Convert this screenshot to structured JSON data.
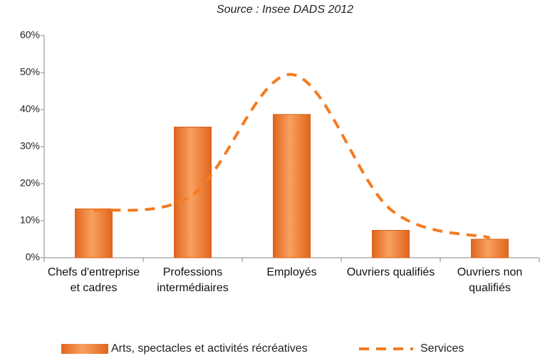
{
  "chart_data": {
    "type": "bar_line",
    "title": "Source : Insee DADS 2012",
    "categories": [
      "Chefs d'entreprise et cadres",
      "Professions intermédiaires",
      "Employés",
      "Ouvriers qualifiés",
      "Ouvriers non qualifiés"
    ],
    "series": [
      {
        "name": "Arts, spectacles et activités récréatives",
        "type": "bar",
        "color": "#f47e2c",
        "values": [
          13.2,
          35.3,
          38.7,
          7.4,
          5.0
        ]
      },
      {
        "name": "Services",
        "type": "line",
        "color": "#f47b20",
        "dashed": true,
        "smooth": true,
        "values": [
          12.8,
          17,
          49.5,
          13,
          5.4
        ]
      }
    ],
    "ylim": [
      0,
      60
    ],
    "yticks": [
      {
        "value": 0,
        "label": "0%"
      },
      {
        "value": 10,
        "label": "10%"
      },
      {
        "value": 20,
        "label": "20%"
      },
      {
        "value": 30,
        "label": "30%"
      },
      {
        "value": 40,
        "label": "40%"
      },
      {
        "value": 50,
        "label": "50%"
      },
      {
        "value": 60,
        "label": "60%"
      }
    ],
    "legend": "bottom"
  }
}
